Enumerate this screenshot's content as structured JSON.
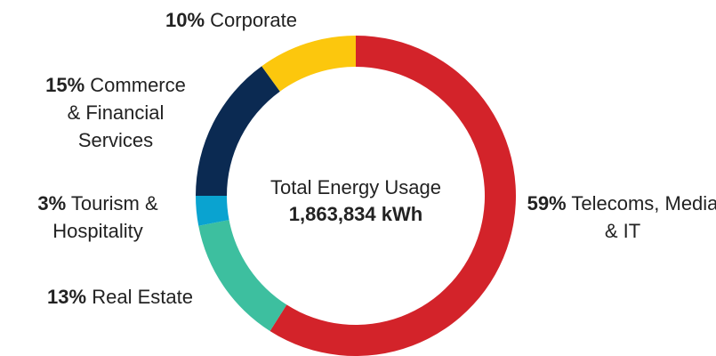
{
  "chart_data": {
    "type": "pie",
    "center_title": "Total Energy Usage",
    "total": 1863834,
    "total_label": "1,863,834 kWh",
    "categories": [
      "Telecoms, Media & IT",
      "Real Estate",
      "Tourism & Hospitality",
      "Commerce & Financial Services",
      "Corporate"
    ],
    "values": [
      59,
      13,
      3,
      15,
      10
    ],
    "value_labels": [
      "59%",
      "13%",
      "3%",
      "15%",
      "10%"
    ],
    "colors": [
      "#d3232a",
      "#3dbf9f",
      "#0aa3d0",
      "#0b2a52",
      "#fcc70d"
    ],
    "donut": true
  }
}
